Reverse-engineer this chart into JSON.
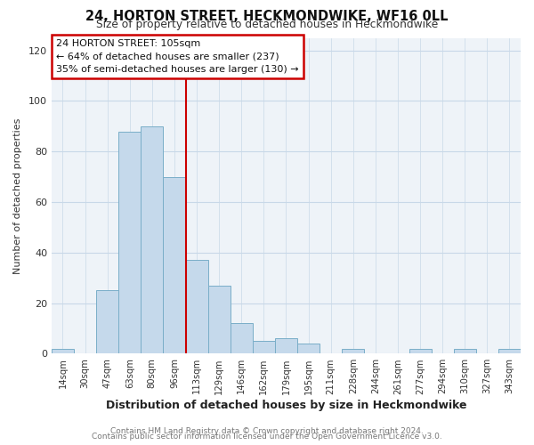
{
  "title": "24, HORTON STREET, HECKMONDWIKE, WF16 0LL",
  "subtitle": "Size of property relative to detached houses in Heckmondwike",
  "xlabel": "Distribution of detached houses by size in Heckmondwike",
  "ylabel": "Number of detached properties",
  "bin_labels": [
    "14sqm",
    "30sqm",
    "47sqm",
    "63sqm",
    "80sqm",
    "96sqm",
    "113sqm",
    "129sqm",
    "146sqm",
    "162sqm",
    "179sqm",
    "195sqm",
    "211sqm",
    "228sqm",
    "244sqm",
    "261sqm",
    "277sqm",
    "294sqm",
    "310sqm",
    "327sqm",
    "343sqm"
  ],
  "bar_heights": [
    2,
    0,
    25,
    88,
    90,
    70,
    37,
    27,
    12,
    5,
    6,
    4,
    0,
    2,
    0,
    0,
    2,
    0,
    2,
    0,
    2
  ],
  "bar_color": "#c5d9eb",
  "bar_edge_color": "#7aaec8",
  "vline_x": 5.5,
  "vline_color": "#cc0000",
  "annotation_title": "24 HORTON STREET: 105sqm",
  "annotation_line1": "← 64% of detached houses are smaller (237)",
  "annotation_line2": "35% of semi-detached houses are larger (130) →",
  "annotation_box_color": "#ffffff",
  "annotation_box_edge_color": "#cc0000",
  "ylim": [
    0,
    125
  ],
  "yticks": [
    0,
    20,
    40,
    60,
    80,
    100,
    120
  ],
  "footer1": "Contains HM Land Registry data © Crown copyright and database right 2024.",
  "footer2": "Contains public sector information licensed under the Open Government Licence v3.0.",
  "bg_color": "#ffffff",
  "plot_bg_color": "#eef3f8",
  "grid_color": "#c8d8e8"
}
